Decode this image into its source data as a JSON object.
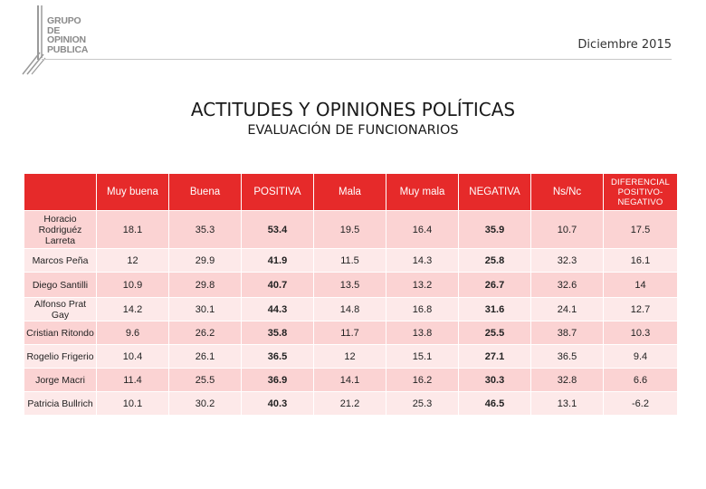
{
  "logo": {
    "lines": [
      "GRUPO",
      "DE",
      "OPINION",
      "PUBLICA"
    ]
  },
  "header": {
    "date": "Diciembre 2015"
  },
  "title": "ACTITUDES Y OPINIONES POLÍTICAS",
  "subtitle": "EVALUACIÓN DE FUNCIONARIOS",
  "colors": {
    "header_bg": "#e62a2a",
    "row_dark": "#fbd3d3",
    "row_light": "#fde9e9"
  },
  "table": {
    "columns": [
      "Muy buena",
      "Buena",
      "POSITIVA",
      "Mala",
      "Muy mala",
      "NEGATIVA",
      "Ns/Nc",
      "DIFERENCIAL POSITIVO-NEGATIVO"
    ],
    "rows": [
      {
        "name": "Horacio Rodriguéz Larreta",
        "values": [
          "18.1",
          "35.3",
          "53.4",
          "19.5",
          "16.4",
          "35.9",
          "10.7",
          "17.5"
        ]
      },
      {
        "name": "Marcos Peña",
        "values": [
          "12",
          "29.9",
          "41.9",
          "11.5",
          "14.3",
          "25.8",
          "32.3",
          "16.1"
        ]
      },
      {
        "name": "Diego Santilli",
        "values": [
          "10.9",
          "29.8",
          "40.7",
          "13.5",
          "13.2",
          "26.7",
          "32.6",
          "14"
        ]
      },
      {
        "name": "Alfonso Prat Gay",
        "values": [
          "14.2",
          "30.1",
          "44.3",
          "14.8",
          "16.8",
          "31.6",
          "24.1",
          "12.7"
        ]
      },
      {
        "name": "Cristian Ritondo",
        "values": [
          "9.6",
          "26.2",
          "35.8",
          "11.7",
          "13.8",
          "25.5",
          "38.7",
          "10.3"
        ]
      },
      {
        "name": "Rogelio Frigerio",
        "values": [
          "10.4",
          "26.1",
          "36.5",
          "12",
          "15.1",
          "27.1",
          "36.5",
          "9.4"
        ]
      },
      {
        "name": "Jorge Macri",
        "values": [
          "11.4",
          "25.5",
          "36.9",
          "14.1",
          "16.2",
          "30.3",
          "32.8",
          "6.6"
        ]
      },
      {
        "name": "Patricia Bullrich",
        "values": [
          "10.1",
          "30.2",
          "40.3",
          "21.2",
          "25.3",
          "46.5",
          "13.1",
          "-6.2"
        ]
      }
    ]
  }
}
